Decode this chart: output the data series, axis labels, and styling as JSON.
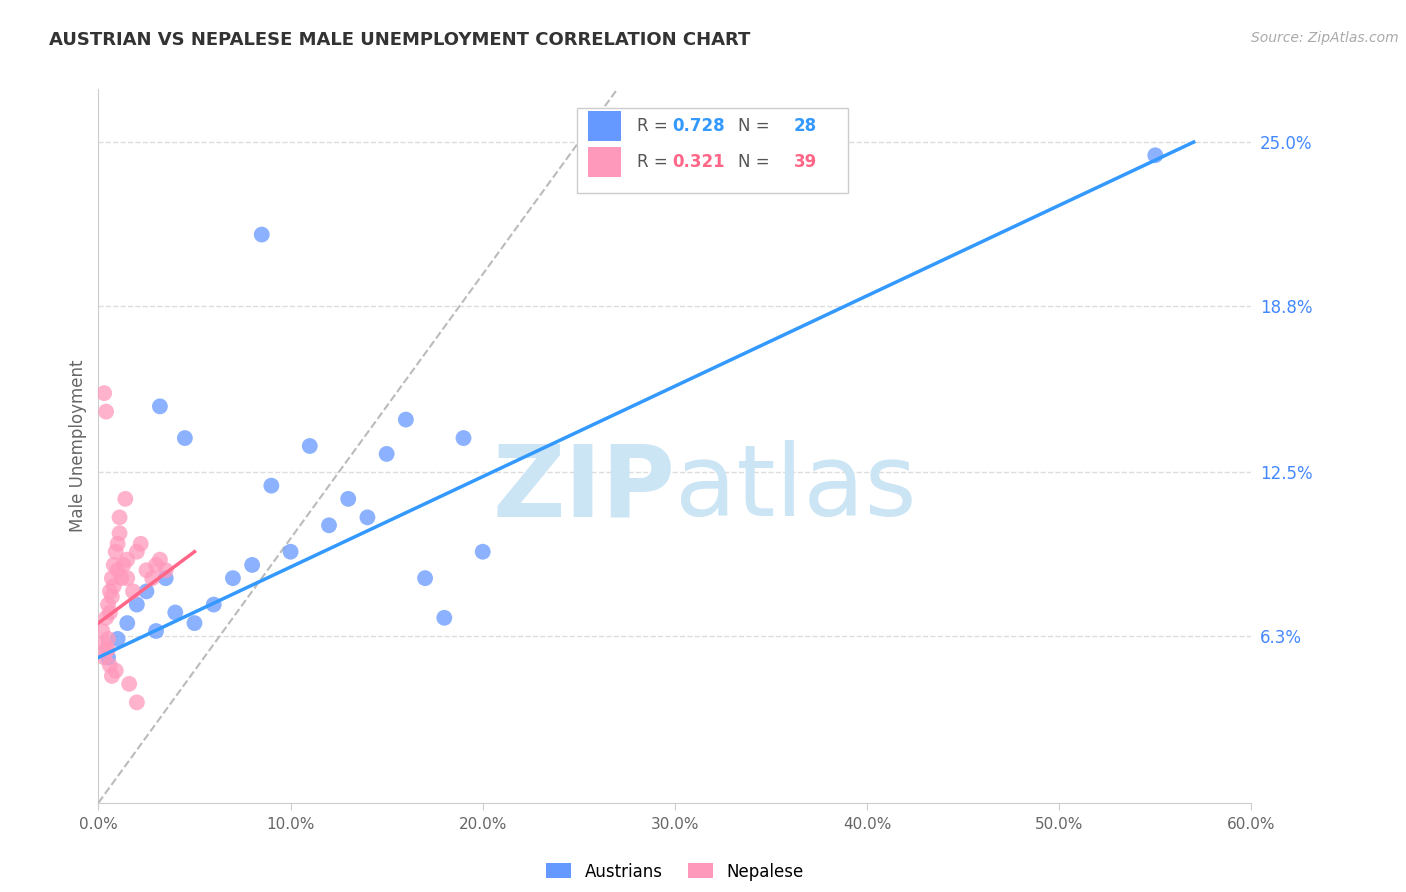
{
  "title": "AUSTRIAN VS NEPALESE MALE UNEMPLOYMENT CORRELATION CHART",
  "source": "Source: ZipAtlas.com",
  "ylabel": "Male Unemployment",
  "xlabel_ticks": [
    "0.0%",
    "10.0%",
    "20.0%",
    "30.0%",
    "40.0%",
    "50.0%",
    "60.0%"
  ],
  "xlabel_vals": [
    0.0,
    10.0,
    20.0,
    30.0,
    40.0,
    50.0,
    60.0
  ],
  "ylabel_ticks_right": [
    "6.3%",
    "12.5%",
    "18.8%",
    "25.0%"
  ],
  "ylabel_vals_right": [
    6.3,
    12.5,
    18.8,
    25.0
  ],
  "xlim": [
    0.0,
    60.0
  ],
  "ylim": [
    0.0,
    27.0
  ],
  "legend_blue_R": "0.728",
  "legend_blue_N": "28",
  "legend_pink_R": "0.321",
  "legend_pink_N": "39",
  "blue_color": "#6699ff",
  "pink_color": "#ff99bb",
  "blue_line_color": "#3399ff",
  "pink_line_color": "#ff6688",
  "diag_line_color": "#bbbbbb",
  "watermark_zip": "ZIP",
  "watermark_atlas": "atlas",
  "watermark_color": "#cce5f5",
  "blue_scatter_x": [
    0.5,
    1.0,
    1.5,
    2.0,
    2.5,
    3.0,
    3.5,
    4.0,
    5.0,
    6.0,
    7.0,
    8.0,
    9.0,
    10.0,
    11.0,
    12.0,
    13.0,
    14.0,
    15.0,
    16.0,
    17.0,
    18.0,
    19.0,
    20.0,
    8.5,
    3.2,
    4.5,
    55.0
  ],
  "blue_scatter_y": [
    5.5,
    6.2,
    6.8,
    7.5,
    8.0,
    6.5,
    8.5,
    7.2,
    6.8,
    7.5,
    8.5,
    9.0,
    12.0,
    9.5,
    13.5,
    10.5,
    11.5,
    10.8,
    13.2,
    14.5,
    8.5,
    7.0,
    13.8,
    9.5,
    21.5,
    15.0,
    13.8,
    24.5
  ],
  "pink_scatter_x": [
    0.2,
    0.3,
    0.3,
    0.4,
    0.4,
    0.5,
    0.5,
    0.6,
    0.6,
    0.7,
    0.7,
    0.8,
    0.8,
    0.9,
    1.0,
    1.0,
    1.1,
    1.2,
    1.3,
    1.5,
    1.5,
    1.8,
    2.0,
    2.5,
    2.8,
    3.0,
    3.5,
    0.3,
    0.4,
    0.5,
    0.6,
    0.7,
    0.9,
    1.1,
    1.4,
    2.2,
    3.2,
    1.6,
    2.0
  ],
  "pink_scatter_y": [
    6.5,
    6.0,
    5.5,
    7.0,
    5.8,
    7.5,
    6.2,
    8.0,
    7.2,
    8.5,
    7.8,
    9.0,
    8.2,
    9.5,
    9.8,
    8.8,
    10.2,
    8.5,
    9.0,
    9.2,
    8.5,
    8.0,
    9.5,
    8.8,
    8.5,
    9.0,
    8.8,
    15.5,
    14.8,
    5.8,
    5.2,
    4.8,
    5.0,
    10.8,
    11.5,
    9.8,
    9.2,
    4.5,
    3.8
  ],
  "blue_line_x0": 0.0,
  "blue_line_y0": 5.5,
  "blue_line_x1": 57.0,
  "blue_line_y1": 25.0,
  "pink_line_x0": 0.0,
  "pink_line_y0": 6.8,
  "pink_line_x1": 5.0,
  "pink_line_y1": 9.5,
  "diag_line_x0": 0.0,
  "diag_line_y0": 0.0,
  "diag_line_x1": 27.0,
  "diag_line_y1": 27.0
}
